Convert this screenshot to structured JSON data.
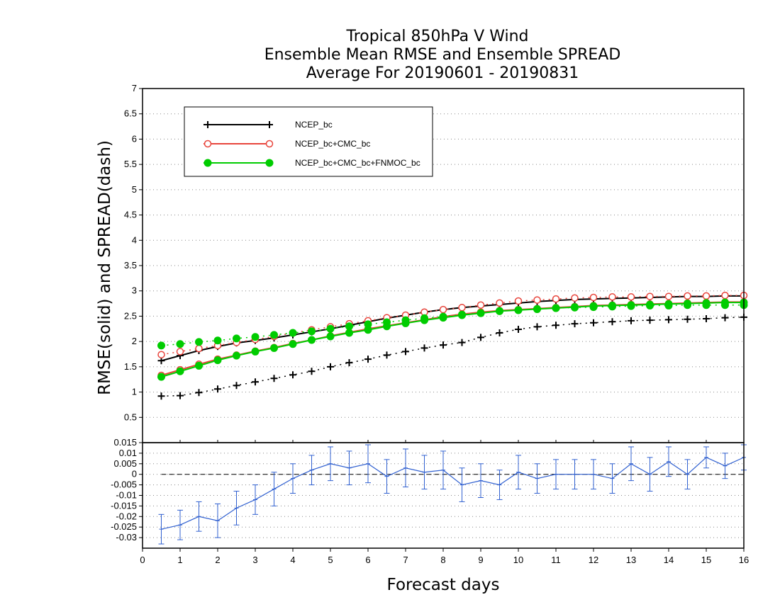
{
  "chart_data": {
    "type": "line",
    "title": [
      "Tropical 850hPa V Wind",
      "Ensemble Mean RMSE and Ensemble SPREAD",
      "Average For 20190601 - 20190831"
    ],
    "xlabel": "Forecast days",
    "ylabel": "RMSE(solid) and SPREAD(dash)",
    "xlim": [
      0,
      16
    ],
    "x_ticks": [
      "0",
      "1",
      "2",
      "3",
      "4",
      "5",
      "6",
      "7",
      "8",
      "9",
      "10",
      "11",
      "12",
      "13",
      "14",
      "15",
      "16"
    ],
    "top_panel": {
      "ylim": [
        0,
        7
      ],
      "y_ticks": [
        "0.5",
        "1",
        "1.5",
        "2",
        "2.5",
        "3",
        "3.5",
        "4",
        "4.5",
        "5",
        "5.5",
        "6",
        "6.5",
        "7"
      ],
      "grid": "dotted horizontal",
      "legend_position": "top-left",
      "x": [
        0.5,
        1,
        1.5,
        2,
        2.5,
        3,
        3.5,
        4,
        4.5,
        5,
        5.5,
        6,
        6.5,
        7,
        7.5,
        8,
        8.5,
        9,
        9.5,
        10,
        10.5,
        11,
        11.5,
        12,
        12.5,
        13,
        13.5,
        14,
        14.5,
        15,
        15.5,
        16
      ],
      "series": [
        {
          "name": "NCEP_bc",
          "color": "#000000",
          "marker": "plus",
          "rmse": [
            1.62,
            1.72,
            1.82,
            1.9,
            1.97,
            2.02,
            2.07,
            2.13,
            2.19,
            2.25,
            2.32,
            2.39,
            2.46,
            2.52,
            2.58,
            2.63,
            2.67,
            2.7,
            2.73,
            2.76,
            2.79,
            2.81,
            2.83,
            2.84,
            2.85,
            2.86,
            2.87,
            2.88,
            2.89,
            2.89,
            2.9,
            2.9
          ],
          "spread": [
            0.92,
            0.93,
            0.99,
            1.06,
            1.13,
            1.2,
            1.27,
            1.34,
            1.41,
            1.5,
            1.58,
            1.65,
            1.73,
            1.8,
            1.87,
            1.93,
            1.98,
            2.08,
            2.17,
            2.24,
            2.29,
            2.32,
            2.35,
            2.37,
            2.39,
            2.41,
            2.42,
            2.43,
            2.44,
            2.45,
            2.47,
            2.48
          ]
        },
        {
          "name": "NCEP_bc+CMC_bc",
          "color": "#e8453c",
          "marker": "open-circle",
          "rmse": [
            1.33,
            1.44,
            1.55,
            1.65,
            1.73,
            1.81,
            1.88,
            1.96,
            2.03,
            2.11,
            2.18,
            2.25,
            2.31,
            2.37,
            2.43,
            2.49,
            2.54,
            2.58,
            2.61,
            2.63,
            2.65,
            2.67,
            2.69,
            2.71,
            2.72,
            2.73,
            2.74,
            2.75,
            2.76,
            2.77,
            2.78,
            2.78
          ],
          "spread": [
            1.74,
            1.8,
            1.86,
            1.92,
            1.98,
            2.04,
            2.1,
            2.17,
            2.23,
            2.29,
            2.35,
            2.41,
            2.47,
            2.52,
            2.58,
            2.63,
            2.67,
            2.72,
            2.76,
            2.8,
            2.82,
            2.84,
            2.86,
            2.87,
            2.88,
            2.88,
            2.89,
            2.89,
            2.9,
            2.9,
            2.91,
            2.91
          ]
        },
        {
          "name": "NCEP_bc+CMC_bc+FNMOC_bc",
          "color": "#00cc00",
          "marker": "filled-circle",
          "rmse": [
            1.3,
            1.41,
            1.52,
            1.63,
            1.72,
            1.8,
            1.87,
            1.95,
            2.03,
            2.1,
            2.17,
            2.23,
            2.3,
            2.36,
            2.42,
            2.47,
            2.52,
            2.56,
            2.6,
            2.62,
            2.64,
            2.66,
            2.68,
            2.7,
            2.71,
            2.72,
            2.73,
            2.74,
            2.75,
            2.76,
            2.77,
            2.77
          ],
          "spread": [
            1.92,
            1.95,
            1.99,
            2.02,
            2.06,
            2.09,
            2.13,
            2.17,
            2.2,
            2.25,
            2.3,
            2.34,
            2.38,
            2.42,
            2.46,
            2.49,
            2.53,
            2.56,
            2.6,
            2.62,
            2.64,
            2.66,
            2.67,
            2.68,
            2.69,
            2.7,
            2.71,
            2.71,
            2.72,
            2.72,
            2.72,
            2.72
          ]
        }
      ]
    },
    "bottom_panel": {
      "ylim": [
        -0.035,
        0.015
      ],
      "y_ticks": [
        "-0.03",
        "-0.025",
        "-0.02",
        "-0.015",
        "-0.01",
        "-0.005",
        "0",
        "0.005",
        "0.01",
        "0.015"
      ],
      "grid": "dotted horizontal",
      "reference_line": 0,
      "color": "#3060d0",
      "x": [
        0.5,
        1,
        1.5,
        2,
        2.5,
        3,
        3.5,
        4,
        4.5,
        5,
        5.5,
        6,
        6.5,
        7,
        7.5,
        8,
        8.5,
        9,
        9.5,
        10,
        10.5,
        11,
        11.5,
        12,
        12.5,
        13,
        13.5,
        14,
        14.5,
        15,
        15.5,
        16
      ],
      "values": [
        -0.026,
        -0.024,
        -0.02,
        -0.022,
        -0.016,
        -0.012,
        -0.007,
        -0.002,
        0.002,
        0.005,
        0.003,
        0.005,
        -0.001,
        0.003,
        0.001,
        0.002,
        -0.005,
        -0.003,
        -0.005,
        0.001,
        -0.002,
        0.0,
        0.0,
        0.0,
        -0.002,
        0.005,
        0.0,
        0.006,
        0.0,
        0.008,
        0.004,
        0.008
      ],
      "error": [
        0.007,
        0.007,
        0.007,
        0.008,
        0.008,
        0.007,
        0.008,
        0.007,
        0.007,
        0.008,
        0.008,
        0.009,
        0.008,
        0.009,
        0.008,
        0.009,
        0.008,
        0.008,
        0.007,
        0.008,
        0.007,
        0.007,
        0.007,
        0.007,
        0.007,
        0.008,
        0.008,
        0.007,
        0.007,
        0.005,
        0.006,
        0.006
      ]
    }
  }
}
